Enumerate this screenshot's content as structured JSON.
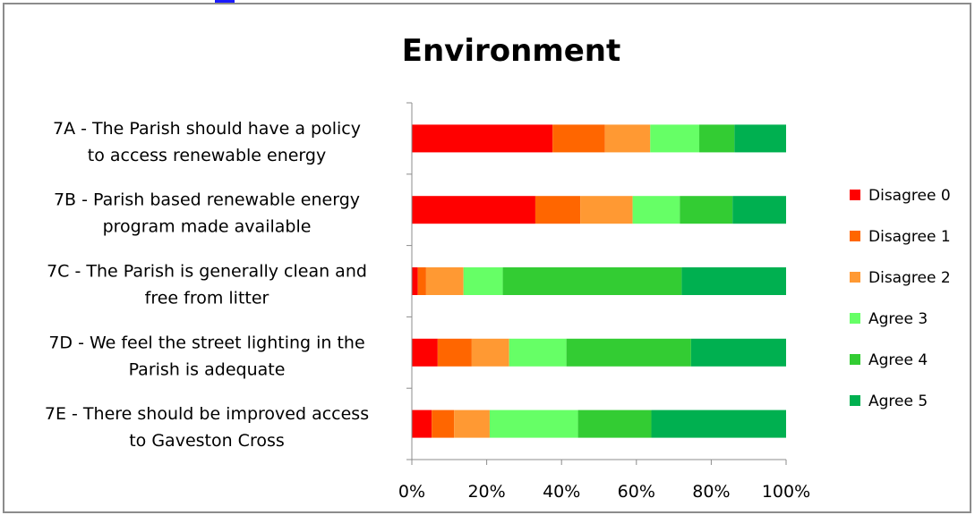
{
  "chart_data": {
    "type": "bar",
    "orientation": "horizontal",
    "stacked": "percent",
    "title": "Environment",
    "categories": [
      [
        "7A - The Parish should have a policy",
        "to access renewable energy"
      ],
      [
        "7B - Parish based renewable energy",
        "program made available"
      ],
      [
        "7C - The Parish is generally clean and",
        "free from litter"
      ],
      [
        "7D - We feel the street lighting in the",
        "Parish is adequate"
      ],
      [
        "7E - There should be improved access",
        "to Gaveston Cross"
      ]
    ],
    "series": [
      {
        "name": "Disagree 0",
        "color": "#ff0000",
        "values": [
          37.6,
          33.0,
          1.6,
          6.9,
          5.3
        ]
      },
      {
        "name": "Disagree 1",
        "color": "#ff6600",
        "values": [
          14.0,
          12.0,
          2.2,
          9.1,
          6.0
        ]
      },
      {
        "name": "Disagree 2",
        "color": "#ff9933",
        "values": [
          12.1,
          14.0,
          10.0,
          10.0,
          9.5
        ]
      },
      {
        "name": "Agree 3",
        "color": "#66ff66",
        "values": [
          13.1,
          12.6,
          10.5,
          15.3,
          23.6
        ]
      },
      {
        "name": "Agree 4",
        "color": "#33cc33",
        "values": [
          9.4,
          14.1,
          47.8,
          33.3,
          19.6
        ]
      },
      {
        "name": "Agree 5",
        "color": "#00b050",
        "values": [
          13.8,
          14.3,
          27.9,
          25.4,
          36.0
        ]
      }
    ],
    "x_ticks": [
      "0%",
      "20%",
      "40%",
      "60%",
      "80%",
      "100%"
    ],
    "xlim": [
      0,
      100
    ],
    "grid": false,
    "legend_position": "right"
  }
}
